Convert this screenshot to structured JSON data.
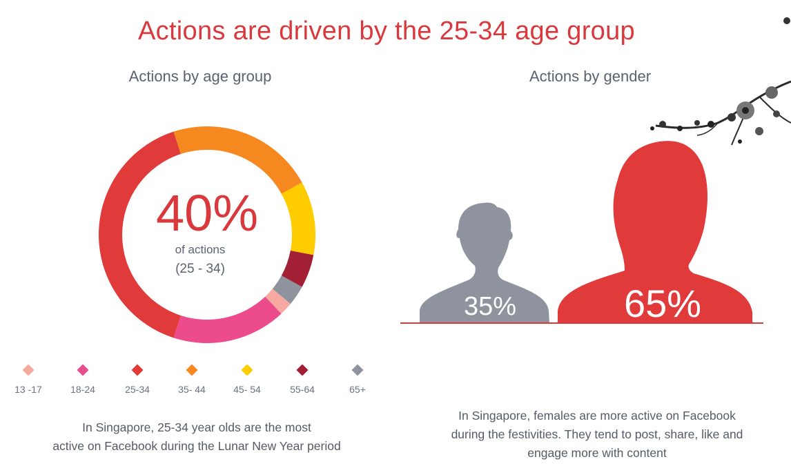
{
  "title": "Actions are driven by the 25-34 age group",
  "age": {
    "subtitle": "Actions by age group",
    "center_value": "40%",
    "center_label": "of actions",
    "center_range": "(25 - 34)",
    "caption_line1": "In Singapore, 25-34 year olds are the most",
    "caption_line2": "active on Facebook during the Lunar New Year period"
  },
  "gender": {
    "subtitle": "Actions by gender",
    "male_value": "35%",
    "female_value": "65%",
    "caption_line1": "In Singapore, females are more active on Facebook",
    "caption_line2": "during the festivities. They tend to post, share, like and",
    "caption_line3": "engage more with content"
  },
  "legend": [
    {
      "label": "13 -17",
      "color": "#f6a9a0"
    },
    {
      "label": "18-24",
      "color": "#ec4c8c"
    },
    {
      "label": "25-34",
      "color": "#e03a3a"
    },
    {
      "label": "35- 44",
      "color": "#f5891f"
    },
    {
      "label": "45- 54",
      "color": "#ffcc00"
    },
    {
      "label": "55-64",
      "color": "#a31f34"
    },
    {
      "label": "65+",
      "color": "#8e939e"
    }
  ],
  "colors": {
    "accent": "#d9393c",
    "male": "#8e939e",
    "female": "#e03a3a"
  },
  "icons": [
    "male-silhouette-icon",
    "female-silhouette-icon",
    "plum-blossom-branch-icon"
  ],
  "chart_data": [
    {
      "type": "pie",
      "variant": "donut",
      "categories": [
        "13 -17",
        "18-24",
        "25-34",
        "35- 44",
        "45- 54",
        "55-64",
        "65+"
      ],
      "values": [
        2,
        17,
        40,
        22,
        11,
        5,
        3
      ],
      "unit": "%",
      "colors": [
        "#f6a9a0",
        "#ec4c8c",
        "#e03a3a",
        "#f5891f",
        "#ffcc00",
        "#a31f34",
        "#8e939e"
      ]
    },
    {
      "type": "bar",
      "categories": [
        "Male",
        "Female"
      ],
      "values": [
        35,
        65
      ],
      "unit": "%",
      "colors": [
        "#8e939e",
        "#e03a3a"
      ]
    }
  ]
}
